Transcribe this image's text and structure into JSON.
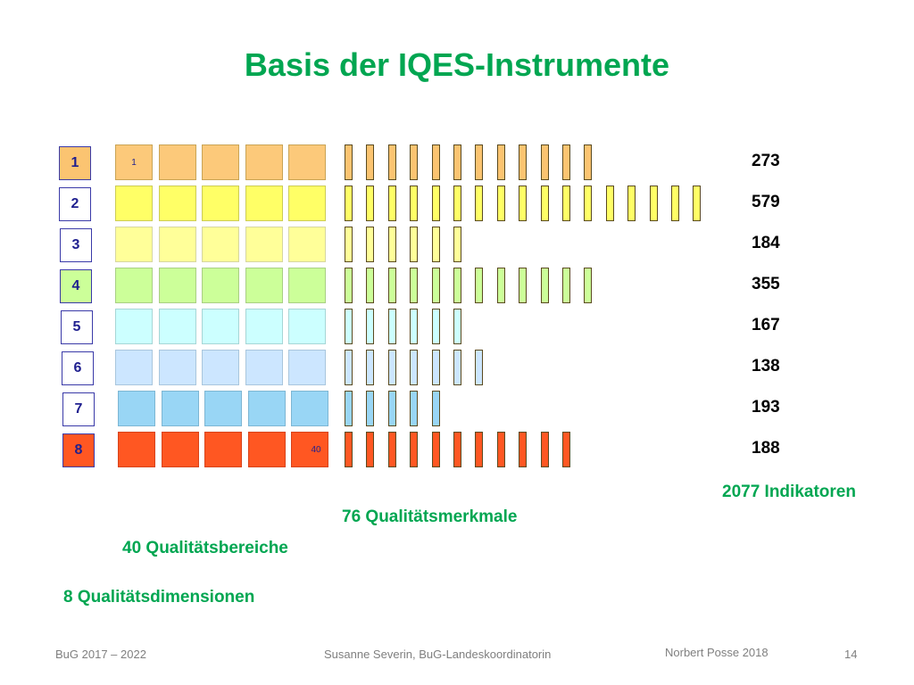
{
  "title": "Basis der IQES-Instrumente",
  "rows": [
    {
      "label": "1",
      "areas": 5,
      "features": 12,
      "count": "273",
      "fill": "#fcc97a",
      "border": "#c9a456",
      "bar_fill": "#fbc471",
      "dim_fill": "#fbc471",
      "dim_border": "#3a3aa8"
    },
    {
      "label": "2",
      "areas": 5,
      "features": 17,
      "count": "579",
      "fill": "#ffff66",
      "border": "#cccc55",
      "bar_fill": "#ffff66",
      "dim_fill": "#ffffff",
      "dim_border": "#3a3aa8"
    },
    {
      "label": "3",
      "areas": 5,
      "features": 6,
      "count": "184",
      "fill": "#ffff99",
      "border": "#d6d6a0",
      "bar_fill": "#ffff99",
      "dim_fill": "#ffffff",
      "dim_border": "#3a3aa8"
    },
    {
      "label": "4",
      "areas": 5,
      "features": 12,
      "count": "355",
      "fill": "#ccff99",
      "border": "#a9cf84",
      "bar_fill": "#ccff99",
      "dim_fill": "#ccff99",
      "dim_border": "#3a3aa8"
    },
    {
      "label": "5",
      "areas": 5,
      "features": 6,
      "count": "167",
      "fill": "#ccffff",
      "border": "#a6d6d6",
      "bar_fill": "#ccffff",
      "dim_fill": "#ffffff",
      "dim_border": "#3a3aa8"
    },
    {
      "label": "6",
      "areas": 5,
      "features": 7,
      "count": "138",
      "fill": "#cce6ff",
      "border": "#a9c6dd",
      "bar_fill": "#cce6ff",
      "dim_fill": "#ffffff",
      "dim_border": "#3a3aa8"
    },
    {
      "label": "7",
      "areas": 5,
      "features": 5,
      "count": "193",
      "fill": "#99d6f5",
      "border": "#7db6d3",
      "bar_fill": "#99d6f5",
      "dim_fill": "#ffffff",
      "dim_border": "#3a3aa8"
    },
    {
      "label": "8",
      "areas": 5,
      "features": 11,
      "count": "188",
      "fill": "#ff5722",
      "border": "#d8431a",
      "bar_fill": "#ff5722",
      "dim_fill": "#ff5722",
      "dim_border": "#3a3aa8"
    }
  ],
  "first_area_label": "1",
  "last_area_label": "40",
  "summary": {
    "indicators": "2077 Indikatoren",
    "features": "76 Qualitätsmerkmale",
    "areas": "40 Qualitätsbereiche",
    "dimensions": "8 Qualitätsdimensionen"
  },
  "footer": {
    "left": "BuG 2017 – 2022",
    "center": "Susanne Severin, BuG-Landeskoordinatorin",
    "right_author": "Norbert Posse 2018",
    "page": "14"
  }
}
